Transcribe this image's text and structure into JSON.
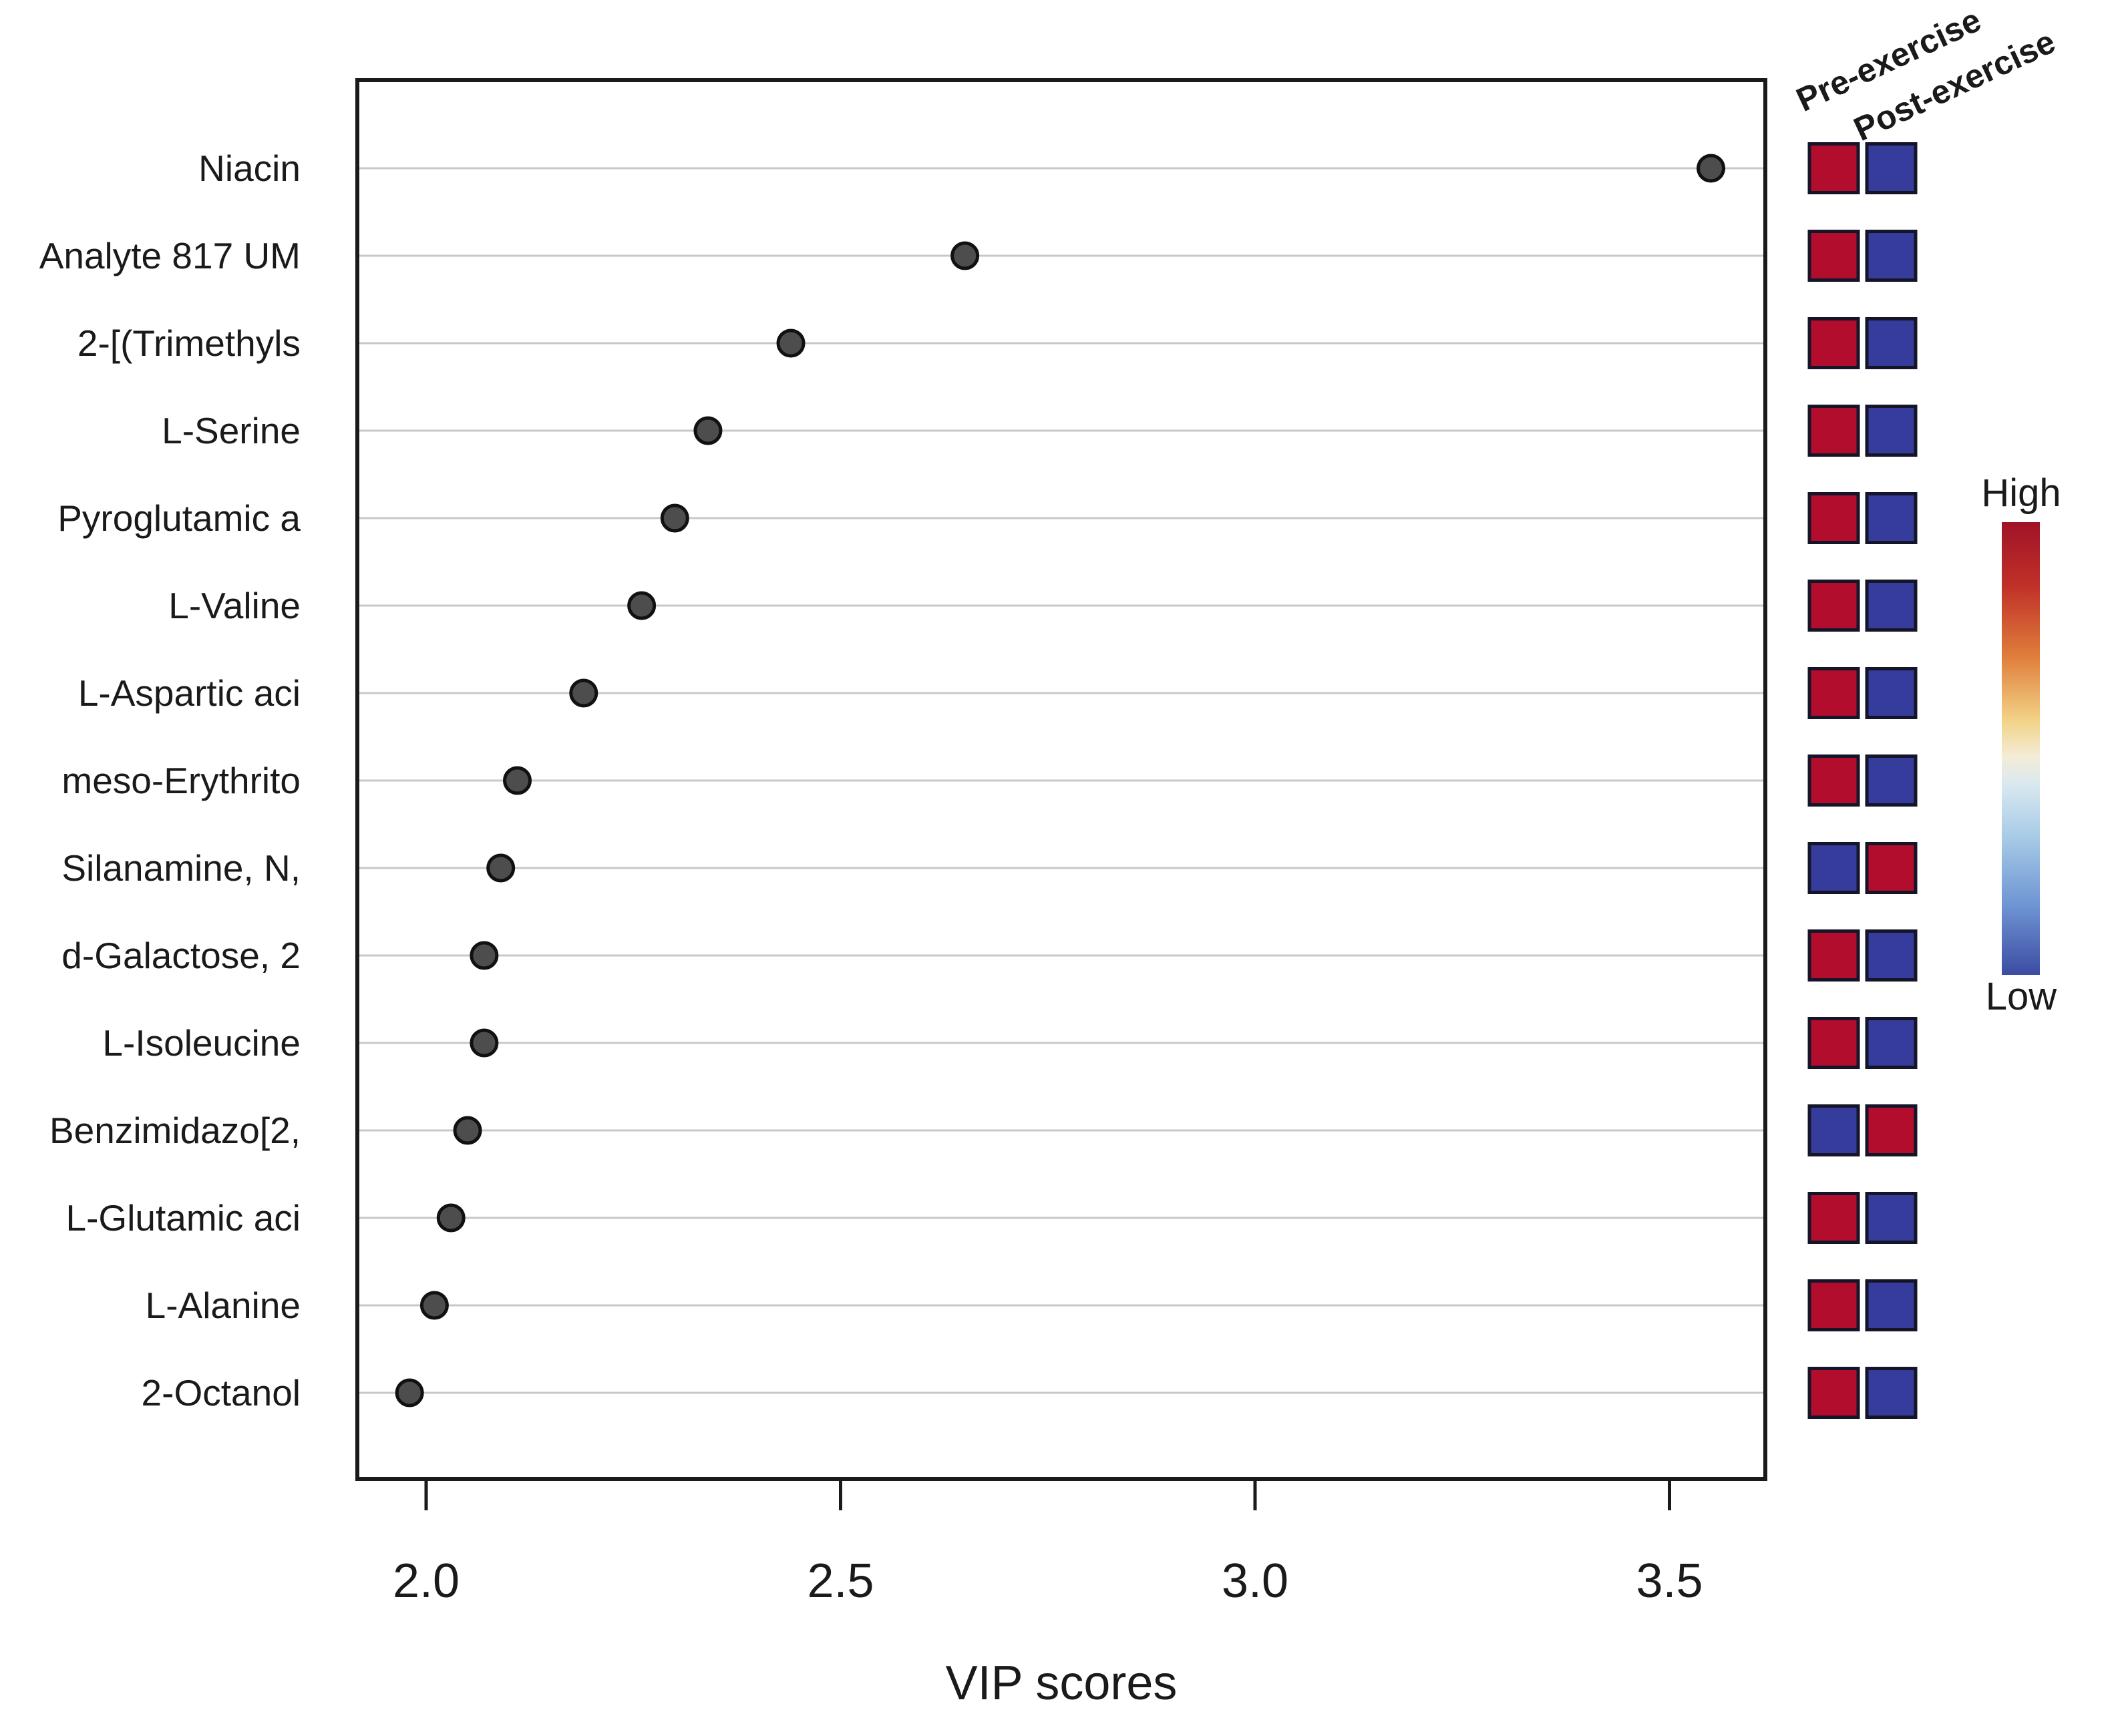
{
  "chart_data": {
    "type": "scatter",
    "title": "",
    "xlabel": "VIP scores",
    "x_ticks": [
      "2.0",
      "2.5",
      "3.0",
      "3.5"
    ],
    "x_tick_values": [
      2.0,
      2.5,
      3.0,
      3.5
    ],
    "xlim": [
      1.92,
      3.62
    ],
    "grid": true,
    "legend_position": "right",
    "categories": [
      "Niacin",
      "Analyte 817 UM",
      "2-[(Trimethyls",
      "L-Serine",
      "Pyroglutamic a",
      "L-Valine",
      "L-Aspartic aci",
      "meso-Erythrito",
      "Silanamine, N,",
      "d-Galactose, 2",
      "L-Isoleucine",
      "Benzimidazo[2,",
      "L-Glutamic aci",
      "L-Alanine",
      "2-Octanol"
    ],
    "values": [
      3.55,
      2.65,
      2.44,
      2.34,
      2.3,
      2.26,
      2.19,
      2.11,
      2.09,
      2.07,
      2.07,
      2.05,
      2.03,
      2.01,
      1.98
    ],
    "heatmap_columns": [
      "Pre-exercise",
      "Post-exercise"
    ],
    "heatmap_levels": [
      [
        "high",
        "low"
      ],
      [
        "high",
        "low"
      ],
      [
        "high",
        "low"
      ],
      [
        "high",
        "low"
      ],
      [
        "high",
        "low"
      ],
      [
        "high",
        "low"
      ],
      [
        "high",
        "low"
      ],
      [
        "high",
        "low"
      ],
      [
        "low",
        "high"
      ],
      [
        "high",
        "low"
      ],
      [
        "high",
        "low"
      ],
      [
        "low",
        "high"
      ],
      [
        "high",
        "low"
      ],
      [
        "high",
        "low"
      ],
      [
        "high",
        "low"
      ]
    ],
    "colorbar": {
      "high_label": "High",
      "low_label": "Low"
    },
    "colors": {
      "high": "#b30d2e",
      "low": "#353c9b",
      "dot_fill": "#4d4d4d",
      "dot_stroke": "#111111",
      "gridline": "#c8c8c8",
      "frame": "#1a1a1a",
      "gradient_stops": [
        "#a01328",
        "#c03028",
        "#e07f3c",
        "#f2d488",
        "#f3ecd8",
        "#d9e8f0",
        "#a5cae6",
        "#6d93d2",
        "#3c4ca3"
      ]
    }
  }
}
